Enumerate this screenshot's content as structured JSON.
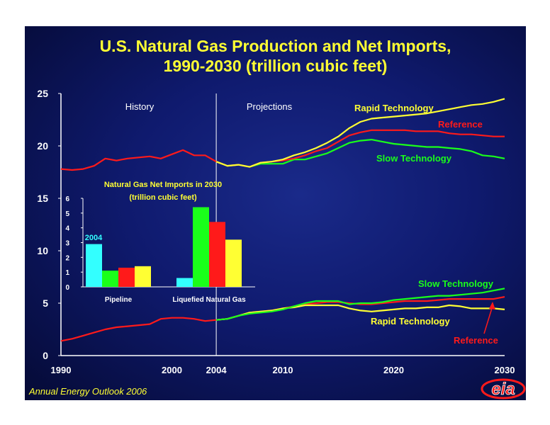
{
  "title_line1": "U.S. Natural Gas Production and Net Imports,",
  "title_line2": "1990-2030 (trillion cubic feet)",
  "footer": "Annual Energy Outlook 2006",
  "logo_text": "eia",
  "colors": {
    "rapid": "#ffff33",
    "reference": "#ff1a1a",
    "slow": "#1aff1a",
    "history": "#ff1a1a",
    "cyan": "#33ffff",
    "text_white": "#ffffff",
    "text_yellow": "#ffff33"
  },
  "chart_data": [
    {
      "type": "line",
      "title": "U.S. Natural Gas Production and Net Imports, 1990-2030 (trillion cubic feet)",
      "xlim": [
        1990,
        2030
      ],
      "ylim": [
        0,
        25
      ],
      "x_ticks": [
        "1990",
        "2000",
        "2004",
        "2010",
        "2020",
        "2030"
      ],
      "x_tick_values": [
        1990,
        2000,
        2004,
        2010,
        2020,
        2030
      ],
      "y_ticks": [
        "0",
        "5",
        "10",
        "15",
        "20",
        "25"
      ],
      "y_tick_values": [
        0,
        5,
        10,
        15,
        20,
        25
      ],
      "region_labels": [
        "History",
        "Projections"
      ],
      "divider_x": 2004,
      "series_labels": {
        "rapid_upper": "Rapid Technology",
        "reference_upper": "Reference",
        "slow_upper": "Slow Technology",
        "slow_lower": "Slow Technology",
        "rapid_lower": "Rapid Technology",
        "reference_lower": "Reference"
      },
      "production_history": {
        "x": [
          1990,
          1991,
          1992,
          1993,
          1994,
          1995,
          1996,
          1997,
          1998,
          1999,
          2000,
          2001,
          2002,
          2003,
          2004
        ],
        "y": [
          17.8,
          17.7,
          17.8,
          18.1,
          18.8,
          18.6,
          18.8,
          18.9,
          19.0,
          18.8,
          19.2,
          19.6,
          19.1,
          19.1,
          18.5
        ]
      },
      "production_reference": {
        "x": [
          2004,
          2005,
          2006,
          2007,
          2008,
          2009,
          2010,
          2011,
          2012,
          2013,
          2014,
          2015,
          2016,
          2017,
          2018,
          2019,
          2020,
          2021,
          2022,
          2023,
          2024,
          2025,
          2026,
          2027,
          2028,
          2029,
          2030
        ],
        "y": [
          18.5,
          18.1,
          18.2,
          18.0,
          18.4,
          18.5,
          18.6,
          18.8,
          19.1,
          19.5,
          19.8,
          20.4,
          21.0,
          21.3,
          21.5,
          21.5,
          21.5,
          21.5,
          21.4,
          21.4,
          21.4,
          21.2,
          21.1,
          21.1,
          21.0,
          20.9,
          20.9
        ]
      },
      "production_rapid": {
        "x": [
          2004,
          2005,
          2006,
          2007,
          2008,
          2009,
          2010,
          2011,
          2012,
          2013,
          2014,
          2015,
          2016,
          2017,
          2018,
          2019,
          2020,
          2021,
          2022,
          2023,
          2024,
          2025,
          2026,
          2027,
          2028,
          2029,
          2030
        ],
        "y": [
          18.5,
          18.1,
          18.2,
          18.0,
          18.4,
          18.5,
          18.7,
          19.1,
          19.4,
          19.8,
          20.3,
          20.9,
          21.7,
          22.3,
          22.6,
          22.7,
          22.8,
          22.9,
          23.0,
          23.1,
          23.3,
          23.5,
          23.7,
          23.9,
          24.0,
          24.2,
          24.5
        ]
      },
      "production_slow": {
        "x": [
          2004,
          2005,
          2006,
          2007,
          2008,
          2009,
          2010,
          2011,
          2012,
          2013,
          2014,
          2015,
          2016,
          2017,
          2018,
          2019,
          2020,
          2021,
          2022,
          2023,
          2024,
          2025,
          2026,
          2027,
          2028,
          2029,
          2030
        ],
        "y": [
          18.5,
          18.1,
          18.2,
          18.0,
          18.3,
          18.3,
          18.3,
          18.7,
          18.7,
          19.0,
          19.3,
          19.8,
          20.3,
          20.5,
          20.6,
          20.4,
          20.2,
          20.1,
          20.0,
          19.9,
          19.9,
          19.8,
          19.7,
          19.5,
          19.1,
          19.0,
          18.8
        ]
      },
      "imports_history": {
        "x": [
          1990,
          1991,
          1992,
          1993,
          1994,
          1995,
          1996,
          1997,
          1998,
          1999,
          2000,
          2001,
          2002,
          2003,
          2004
        ],
        "y": [
          1.4,
          1.6,
          1.9,
          2.2,
          2.5,
          2.7,
          2.8,
          2.9,
          3.0,
          3.5,
          3.6,
          3.6,
          3.5,
          3.3,
          3.4
        ]
      },
      "imports_reference": {
        "x": [
          2004,
          2005,
          2006,
          2007,
          2008,
          2009,
          2010,
          2011,
          2012,
          2013,
          2014,
          2015,
          2016,
          2017,
          2018,
          2019,
          2020,
          2021,
          2022,
          2023,
          2024,
          2025,
          2026,
          2027,
          2028,
          2029,
          2030
        ],
        "y": [
          3.4,
          3.5,
          3.8,
          4.1,
          4.2,
          4.3,
          4.5,
          4.7,
          4.9,
          5.0,
          5.1,
          5.1,
          5.0,
          4.9,
          4.9,
          5.0,
          5.1,
          5.2,
          5.2,
          5.2,
          5.3,
          5.4,
          5.4,
          5.4,
          5.4,
          5.4,
          5.6
        ]
      },
      "imports_rapid": {
        "x": [
          2004,
          2005,
          2006,
          2007,
          2008,
          2009,
          2010,
          2011,
          2012,
          2013,
          2014,
          2015,
          2016,
          2017,
          2018,
          2019,
          2020,
          2021,
          2022,
          2023,
          2024,
          2025,
          2026,
          2027,
          2028,
          2029,
          2030
        ],
        "y": [
          3.4,
          3.5,
          3.8,
          4.1,
          4.2,
          4.3,
          4.5,
          4.6,
          4.8,
          4.8,
          4.8,
          4.8,
          4.5,
          4.3,
          4.2,
          4.3,
          4.4,
          4.5,
          4.5,
          4.6,
          4.6,
          4.8,
          4.7,
          4.5,
          4.5,
          4.5,
          4.4
        ]
      },
      "imports_slow": {
        "x": [
          2004,
          2005,
          2006,
          2007,
          2008,
          2009,
          2010,
          2011,
          2012,
          2013,
          2014,
          2015,
          2016,
          2017,
          2018,
          2019,
          2020,
          2021,
          2022,
          2023,
          2024,
          2025,
          2026,
          2027,
          2028,
          2029,
          2030
        ],
        "y": [
          3.4,
          3.5,
          3.8,
          4.0,
          4.1,
          4.2,
          4.4,
          4.7,
          5.0,
          5.2,
          5.2,
          5.2,
          4.9,
          5.0,
          5.0,
          5.1,
          5.3,
          5.4,
          5.5,
          5.6,
          5.7,
          5.7,
          5.8,
          5.9,
          6.0,
          6.2,
          6.4
        ]
      }
    },
    {
      "type": "bar",
      "title": "Natural Gas Net Imports in 2030",
      "subtitle": "(trillion cubic feet)",
      "ylim": [
        0,
        6
      ],
      "y_ticks": [
        "0",
        "1",
        "2",
        "3",
        "4",
        "5",
        "6"
      ],
      "y_tick_values": [
        0,
        1,
        2,
        3,
        4,
        5,
        6
      ],
      "categories": [
        "Pipeline",
        "Liquefied Natural Gas"
      ],
      "series": [
        {
          "name": "2004",
          "values": [
            2.9,
            0.6
          ]
        },
        {
          "values": [
            1.1,
            5.4
          ]
        },
        {
          "values": [
            1.3,
            4.4
          ]
        },
        {
          "values": [
            1.4,
            3.2
          ]
        }
      ]
    }
  ]
}
